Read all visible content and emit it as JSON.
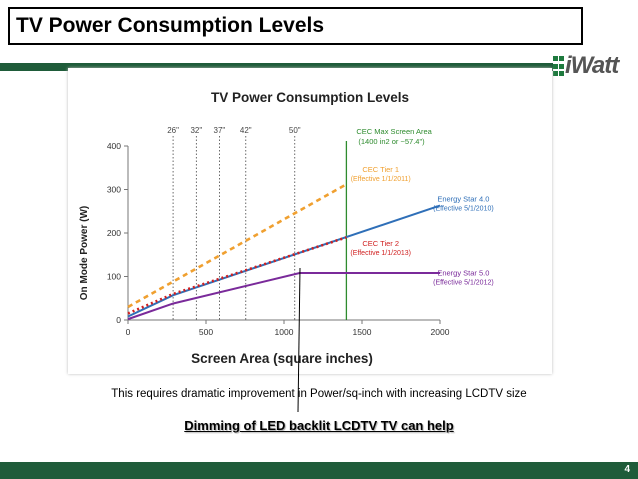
{
  "slide": {
    "title": "TV Power Consumption Levels",
    "logo_text": "iWatt",
    "caption": "This requires dramatic improvement in Power/sq-inch with increasing LCDTV size",
    "emphasis": "Dimming of LED backlit LCDTV TV can help",
    "page_number": "4",
    "accent_color": "#1f5c3a"
  },
  "chart_data": {
    "type": "line",
    "title": "TV Power Consumption Levels",
    "xlabel": "Screen Area (square inches)",
    "ylabel": "On Mode Power (W)",
    "xlim": [
      0,
      2000
    ],
    "ylim": [
      0,
      400
    ],
    "x_ticks": [
      "0",
      "500",
      "1000",
      "1500",
      "2000"
    ],
    "y_ticks": [
      "0",
      "100",
      "200",
      "300",
      "400"
    ],
    "screen_sizes": [
      {
        "label": "26\"",
        "x": 289
      },
      {
        "label": "32\"",
        "x": 438
      },
      {
        "label": "37\"",
        "x": 586
      },
      {
        "label": "42\"",
        "x": 755
      },
      {
        "label": "50\"",
        "x": 1069
      }
    ],
    "vline": {
      "label": "CEC Max Screen Area",
      "sublabel": "(1400 in2 or ~57.4\")",
      "x": 1400,
      "color": "#2e8b2e"
    },
    "series": [
      {
        "name": "CEC Tier 1",
        "sublabel": "(Effective 1/1/2011)",
        "color": "#f0a030",
        "dash": "dash",
        "x": [
          0,
          1400
        ],
        "y": [
          30,
          312
        ]
      },
      {
        "name": "Energy Star 4.0",
        "sublabel": "(Effective 5/1/2010)",
        "color": "#2f6fb8",
        "dash": "solid",
        "x": [
          0,
          290,
          2000
        ],
        "y": [
          8,
          57,
          263
        ]
      },
      {
        "name": "CEC Tier 2",
        "sublabel": "(Effective 1/1/2013)",
        "color": "#d02020",
        "dash": "dot",
        "x": [
          0,
          290,
          1400
        ],
        "y": [
          15,
          60,
          190
        ]
      },
      {
        "name": "Energy Star 5.0",
        "sublabel": "(Effective 5/1/2012)",
        "color": "#7a2a9a",
        "dash": "solid",
        "x": [
          0,
          290,
          1100,
          2000
        ],
        "y": [
          2,
          38,
          108,
          108
        ]
      }
    ]
  }
}
